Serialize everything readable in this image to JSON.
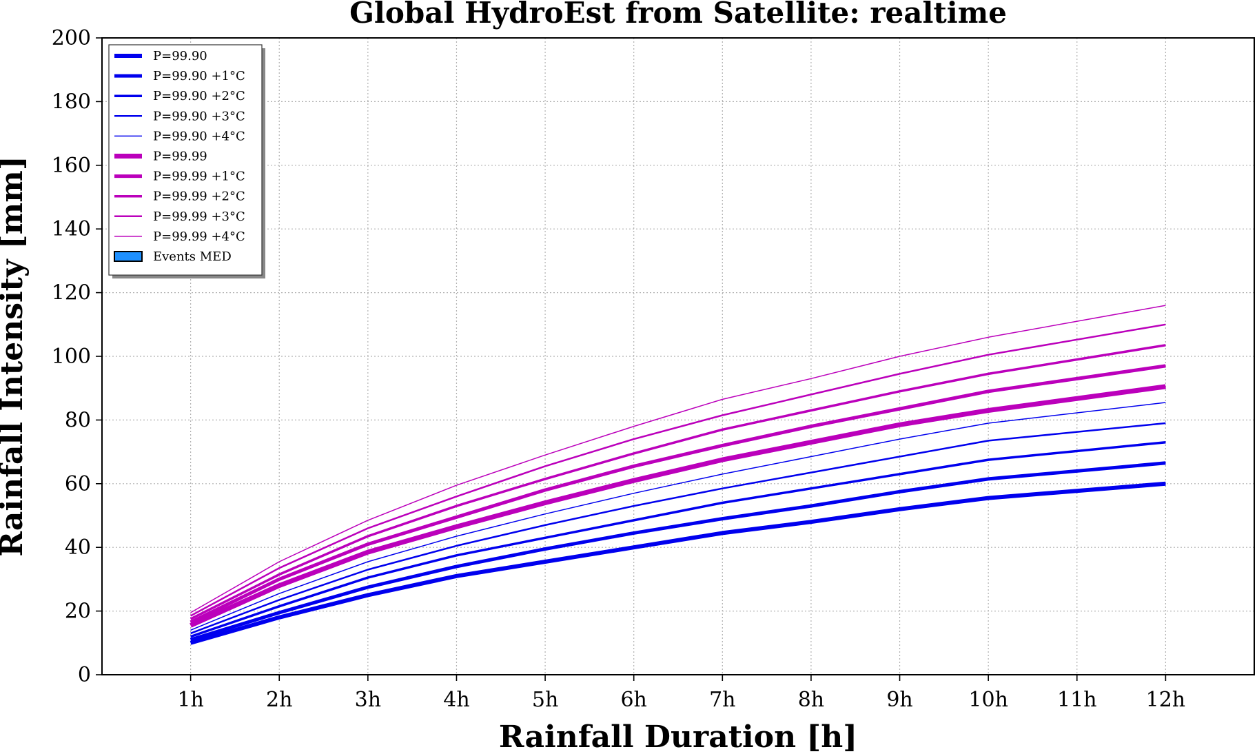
{
  "chart_data": {
    "type": "line",
    "title": "Global HydroEst from Satellite: realtime",
    "xlabel": "Rainfall Duration [h]",
    "ylabel": "Rainfall Intensity [mm]",
    "categories": [
      "1h",
      "2h",
      "3h",
      "4h",
      "5h",
      "6h",
      "7h",
      "8h",
      "9h",
      "10h",
      "11h",
      "12h"
    ],
    "x_positions": [
      1,
      2,
      3,
      4,
      5,
      6,
      7,
      8,
      9,
      10,
      11,
      12
    ],
    "xlim": [
      0,
      13
    ],
    "ylim": [
      0,
      200
    ],
    "yticks": [
      0,
      20,
      40,
      60,
      80,
      100,
      120,
      140,
      160,
      180,
      200
    ],
    "grid": true,
    "legend_position": "top-left",
    "series": [
      {
        "name": "P=99.90",
        "color": "#0000ee",
        "width": 6,
        "x": [
          1,
          2,
          3,
          4,
          5,
          6,
          7,
          8,
          9,
          10,
          12
        ],
        "values": [
          10,
          18,
          25,
          31,
          35.5,
          40,
          44.5,
          48,
          52,
          55.5,
          60
        ]
      },
      {
        "name": "P=99.90 +1°C",
        "color": "#0000ee",
        "width": 5,
        "x": [
          1,
          2,
          3,
          4,
          5,
          6,
          7,
          8,
          9,
          10,
          12
        ],
        "values": [
          11,
          19.5,
          27.5,
          34,
          39.5,
          44.5,
          49,
          53,
          57.5,
          61.5,
          66.5
        ]
      },
      {
        "name": "P=99.90 +2°C",
        "color": "#0000ee",
        "width": 3.5,
        "x": [
          1,
          2,
          3,
          4,
          5,
          6,
          7,
          8,
          9,
          10,
          12
        ],
        "values": [
          12,
          21.5,
          30.5,
          37.5,
          43,
          48.5,
          54,
          58.5,
          63,
          67.5,
          73
        ]
      },
      {
        "name": "P=99.90 +3°C",
        "color": "#0000ee",
        "width": 2.5,
        "x": [
          1,
          2,
          3,
          4,
          5,
          6,
          7,
          8,
          9,
          10,
          12
        ],
        "values": [
          13,
          23.5,
          33,
          40.5,
          47,
          53,
          58.5,
          63.5,
          68.5,
          73.5,
          79
        ]
      },
      {
        "name": "P=99.90 +4°C",
        "color": "#0000ee",
        "width": 1.5,
        "x": [
          1,
          2,
          3,
          4,
          5,
          6,
          7,
          8,
          9,
          10,
          12
        ],
        "values": [
          14,
          25.5,
          35.5,
          43.5,
          50.5,
          57,
          63,
          68.5,
          74,
          79,
          85.5
        ]
      },
      {
        "name": "P=99.99",
        "color": "#bb00bb",
        "width": 7,
        "x": [
          1,
          2,
          3,
          4,
          5,
          6,
          7,
          8,
          9,
          10,
          12
        ],
        "values": [
          15.5,
          28,
          38.5,
          46.5,
          54,
          61,
          67.5,
          73,
          78.5,
          83,
          90.5
        ]
      },
      {
        "name": "P=99.99 +1°C",
        "color": "#bb00bb",
        "width": 5,
        "x": [
          1,
          2,
          3,
          4,
          5,
          6,
          7,
          8,
          9,
          10,
          12
        ],
        "values": [
          16.5,
          30,
          41,
          49.5,
          58,
          65.5,
          72,
          78,
          83.5,
          89,
          97
        ]
      },
      {
        "name": "P=99.99 +2°C",
        "color": "#bb00bb",
        "width": 3.5,
        "x": [
          1,
          2,
          3,
          4,
          5,
          6,
          7,
          8,
          9,
          10,
          12
        ],
        "values": [
          17.5,
          31.5,
          43.5,
          53,
          61.5,
          69.5,
          77,
          83,
          89,
          94.5,
          103.5
        ]
      },
      {
        "name": "P=99.99 +3°C",
        "color": "#bb00bb",
        "width": 2.5,
        "x": [
          1,
          2,
          3,
          4,
          5,
          6,
          7,
          8,
          9,
          10,
          12
        ],
        "values": [
          18.5,
          33.5,
          46,
          56,
          65.5,
          74,
          81.5,
          88,
          94.5,
          100.5,
          110
        ]
      },
      {
        "name": "P=99.99 +4°C",
        "color": "#bb00bb",
        "width": 1.5,
        "x": [
          1,
          2,
          3,
          4,
          5,
          6,
          7,
          8,
          9,
          10,
          12
        ],
        "values": [
          19.5,
          35.5,
          48.5,
          59.5,
          69,
          78,
          86.5,
          93,
          100,
          106,
          116
        ]
      }
    ],
    "extra_legend": [
      {
        "name": "Events MED",
        "type": "patch",
        "color": "#1e90ff"
      }
    ]
  }
}
